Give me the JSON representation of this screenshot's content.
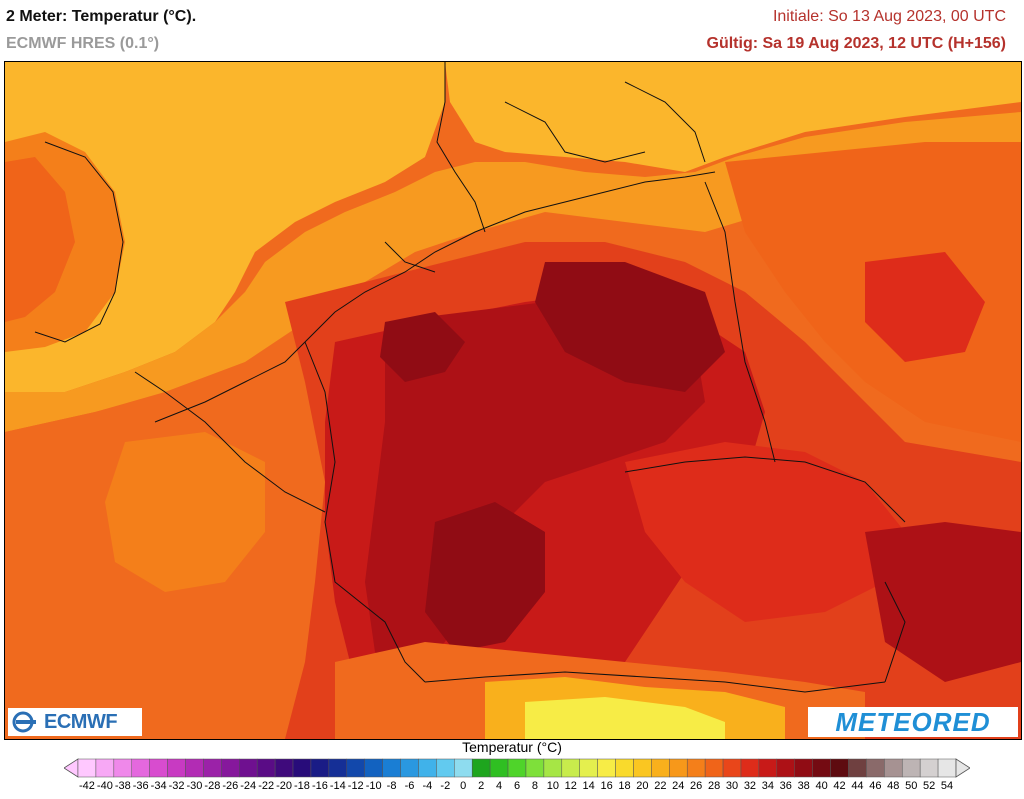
{
  "header": {
    "title": "2 Meter: Temperatur (°C).",
    "model": "ECMWF HRES (0.1°)",
    "initial": "Initiale: So 13 Aug 2023, 00 UTC",
    "valid": "Gültig: Sa 19 Aug 2023, 12 UTC (H+156)"
  },
  "logos": {
    "ecmwf": "ECMWF",
    "meteored": "METEORED"
  },
  "legend": {
    "title": "Temperatur (°C)",
    "labels": [
      "-42",
      "-40",
      "-38",
      "-36",
      "-34",
      "-32",
      "-30",
      "-28",
      "-26",
      "-24",
      "-22",
      "-20",
      "-18",
      "-16",
      "-14",
      "-12",
      "-10",
      "-8",
      "-6",
      "-4",
      "-2",
      "0",
      "2",
      "4",
      "6",
      "8",
      "10",
      "12",
      "14",
      "16",
      "18",
      "20",
      "22",
      "24",
      "26",
      "28",
      "30",
      "32",
      "34",
      "36",
      "38",
      "40",
      "42",
      "44",
      "46",
      "48",
      "50",
      "52",
      "54"
    ],
    "colors": [
      "#ffc8ff",
      "#f7a8f5",
      "#ef88ea",
      "#e468de",
      "#d84ccf",
      "#c83ac2",
      "#b22cb4",
      "#9b22a8",
      "#86189c",
      "#6f1090",
      "#5a0c86",
      "#3f0a7c",
      "#280c7a",
      "#1a1c86",
      "#152f96",
      "#1248ab",
      "#1262c0",
      "#1a7ed4",
      "#2a98e0",
      "#40b2ea",
      "#62caef",
      "#8edcef",
      "#1ea51e",
      "#2fbf22",
      "#4fd42a",
      "#7ee03a",
      "#a6e645",
      "#c8ec4c",
      "#e4ef4e",
      "#f7ec46",
      "#f9da2c",
      "#fac621",
      "#f9b01c",
      "#f7981a",
      "#f47f1a",
      "#f06419",
      "#e9461a",
      "#de2c1a",
      "#c81a18",
      "#ad1116",
      "#900c14",
      "#740b12",
      "#5e0b10",
      "#6f4040",
      "#8a6a6a",
      "#a69292",
      "#bdb4b4",
      "#d4d0d0",
      "#e6e6e6"
    ]
  },
  "colors": {
    "sea_cool": "#fbb62c",
    "sea_mid": "#f79a20",
    "land_warm": "#f06a1e",
    "land_hot": "#e2401b",
    "land_hotter": "#c7181a",
    "land_hottest": "#a00f16",
    "brand_ecmwf": "#2a6fb5",
    "brand_meteored": "#1f8fd6",
    "header_red": "#b5322c"
  }
}
